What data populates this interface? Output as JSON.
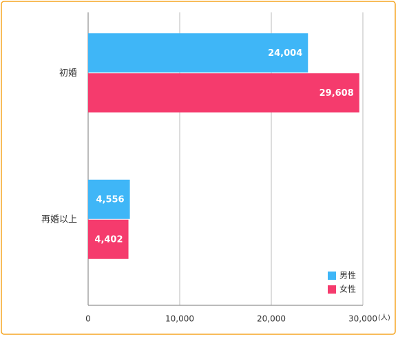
{
  "chart_data": {
    "type": "hbar",
    "categories": [
      "初婚",
      "再婚以上"
    ],
    "series": [
      {
        "name": "男性",
        "color": "#3fb6f7",
        "values": [
          24004,
          4556
        ],
        "value_labels": [
          "24,004",
          "4,556"
        ]
      },
      {
        "name": "女性",
        "color": "#f53b6d",
        "values": [
          29608,
          4402
        ],
        "value_labels": [
          "29,608",
          "4,402"
        ]
      }
    ],
    "xlim": [
      0,
      30000
    ],
    "xticks": [
      0,
      {
        "value": 10000,
        "label": "10,000"
      },
      {
        "value": 20000,
        "label": "20,000"
      },
      {
        "value": 30000,
        "label": "30,000"
      }
    ],
    "x_unit": "(人)",
    "grid": true,
    "legend": "lower right"
  }
}
